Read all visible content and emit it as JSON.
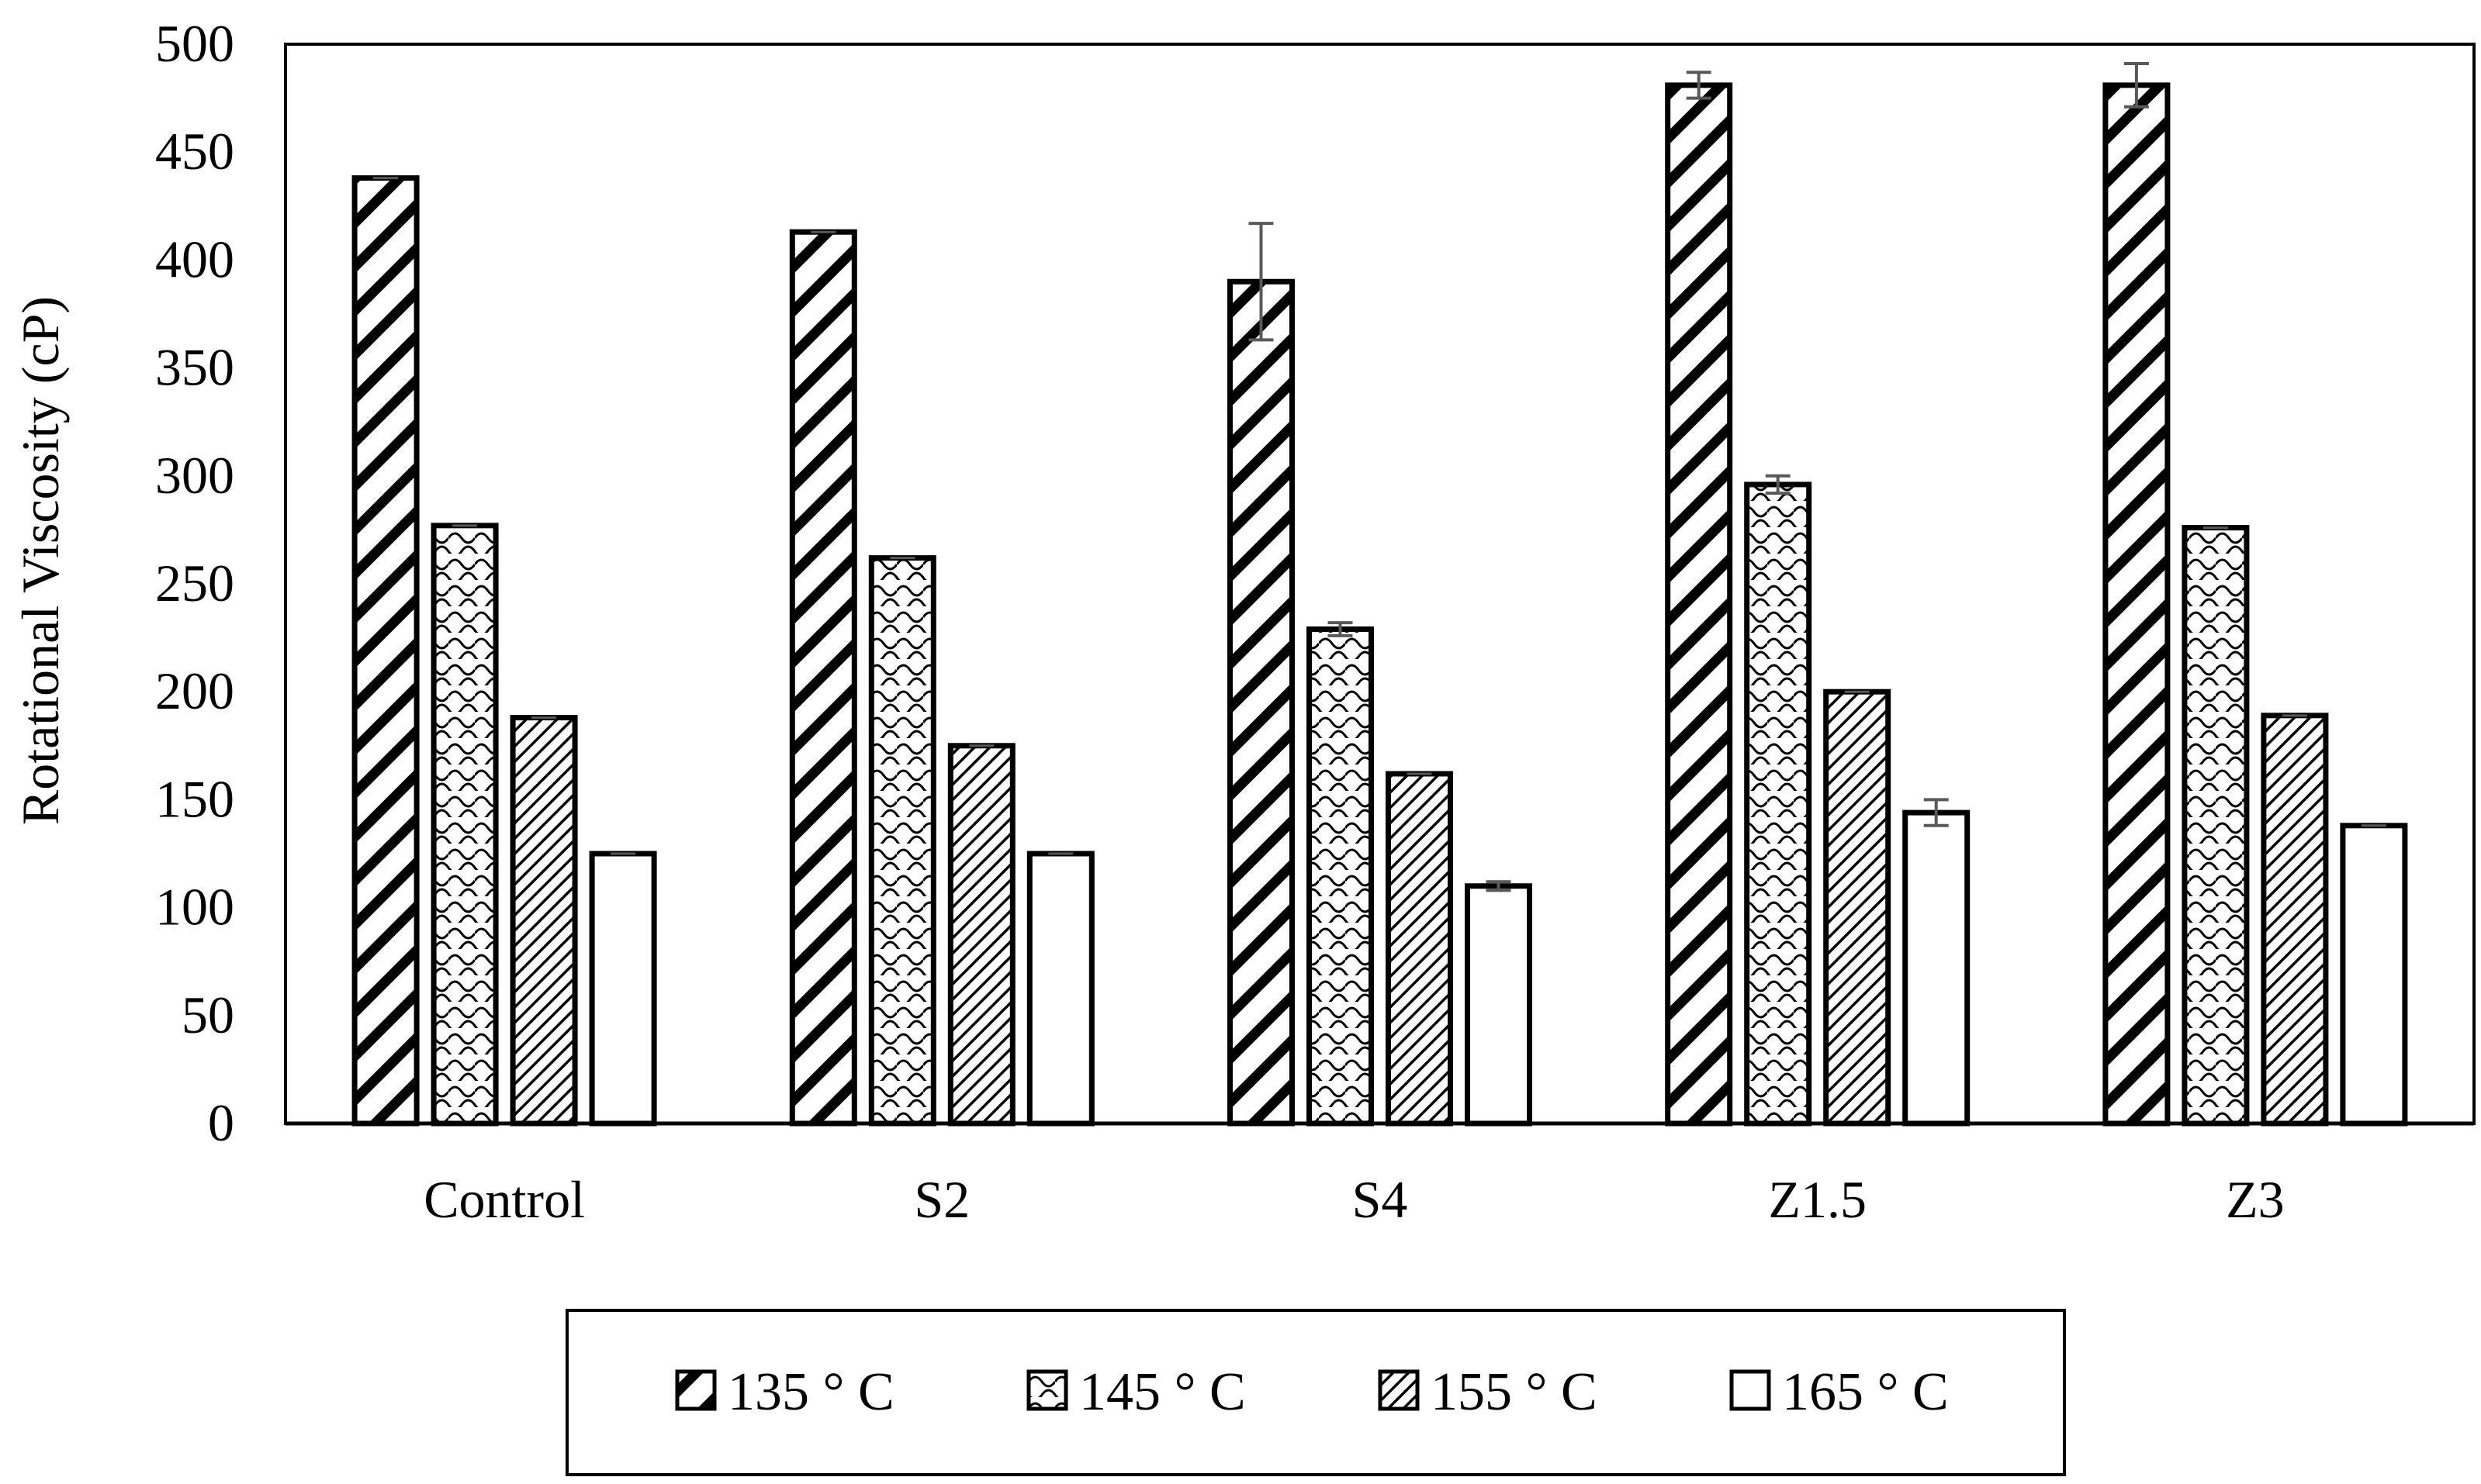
{
  "chart_data": {
    "type": "bar",
    "title": "",
    "xlabel": "",
    "ylabel": "Rotational Viscosity (cP)",
    "ylim": [
      0,
      500
    ],
    "ytick_step": 50,
    "yticks": [
      "0",
      "50",
      "100",
      "150",
      "200",
      "250",
      "300",
      "350",
      "400",
      "450",
      "500"
    ],
    "grid": false,
    "legend_position": "bottom",
    "categories": [
      "Control",
      "S2",
      "S4",
      "Z1.5",
      "Z3"
    ],
    "series": [
      {
        "name": "135 ° C",
        "pattern": "wide-diagonal-hatch",
        "values": [
          438,
          413,
          390,
          481,
          481
        ],
        "errors": [
          0,
          0,
          27,
          6,
          10
        ]
      },
      {
        "name": "145 ° C",
        "pattern": "wave-texture",
        "values": [
          277,
          262,
          229,
          296,
          276
        ],
        "errors": [
          0,
          0,
          3,
          4,
          0
        ]
      },
      {
        "name": "155 ° C",
        "pattern": "fine-diagonal-hatch",
        "values": [
          188,
          175,
          162,
          200,
          189
        ],
        "errors": [
          0,
          0,
          0,
          0,
          0
        ]
      },
      {
        "name": "165 ° C",
        "pattern": "solid-white",
        "values": [
          125,
          125,
          110,
          144,
          138
        ],
        "errors": [
          0,
          0,
          2,
          6,
          0
        ]
      }
    ],
    "colors": {
      "bar_outline": "#000000",
      "error_bar": "#595959",
      "fill": "#ffffff"
    }
  }
}
